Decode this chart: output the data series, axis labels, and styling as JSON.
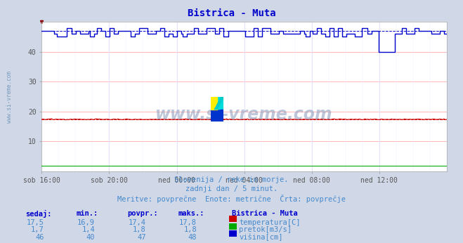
{
  "title": "Bistrica - Muta",
  "title_color": "#0000cc",
  "bg_color": "#d0d8e8",
  "plot_bg_color": "#ffffff",
  "grid_color_h": "#ffaaaa",
  "grid_color_v": "#ddddff",
  "xlabel_ticks": [
    "sob 16:00",
    "sob 20:00",
    "ned 00:00",
    "ned 04:00",
    "ned 08:00",
    "ned 12:00"
  ],
  "n_points": 288,
  "ylim": [
    0,
    50
  ],
  "yticks": [
    10,
    20,
    30,
    40
  ],
  "temp_avg": 17.4,
  "pretok_avg": 1.8,
  "visina_avg": 47,
  "temp_color": "#cc0000",
  "pretok_color": "#00aa00",
  "visina_color": "#0000cc",
  "watermark": "www.si-vreme.com",
  "subtitle1": "Slovenija / reke in morje.",
  "subtitle2": "zadnji dan / 5 minut.",
  "subtitle3": "Meritve: povprečne  Enote: metrične  Črta: povprečje",
  "subtitle_color": "#4488cc",
  "table_header_color": "#0000cc",
  "table_value_color": "#4488cc",
  "table_cols": [
    "sedaj:",
    "min.:",
    "povpr.:",
    "maks.:"
  ],
  "table_station": "Bistrica - Muta",
  "table_rows": [
    [
      "17,5",
      "16,9",
      "17,4",
      "17,8",
      "temperatura[C]",
      "#cc0000"
    ],
    [
      "1,7",
      "1,4",
      "1,8",
      "1,8",
      "pretok[m3/s]",
      "#00aa00"
    ],
    [
      "46",
      "40",
      "47",
      "48",
      "višina[cm]",
      "#0000cc"
    ]
  ],
  "left_label": "www.si-vreme.com"
}
